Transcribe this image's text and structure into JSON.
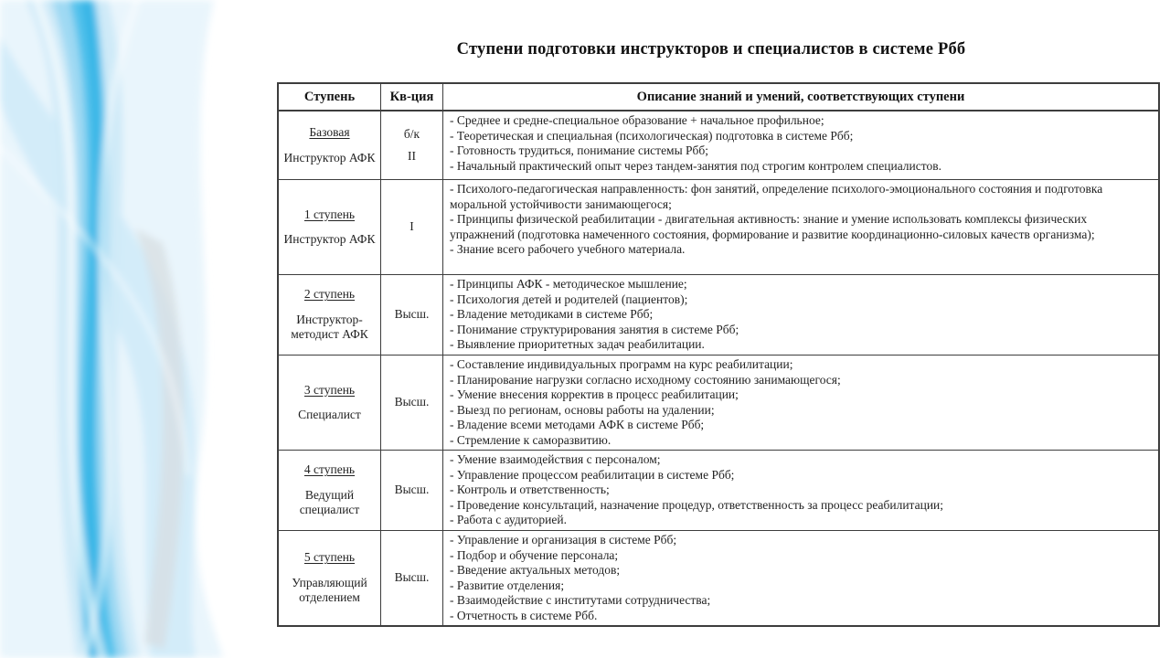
{
  "slide": {
    "title": "Ступени подготовки инструкторов и специалистов в системе Рбб"
  },
  "table": {
    "headers": [
      "Ступень",
      "Кв-ция",
      "Описание знаний и умений, соответствующих ступени"
    ],
    "rows": [
      {
        "stage": "Базовая",
        "role": "Инструктор АФК",
        "qualification": [
          "б/к",
          "II"
        ],
        "items": [
          "- Среднее и средне-специальное образование + начальное профильное;",
          "- Теоретическая и специальная (психологическая) подготовка в системе Рбб;",
          "- Готовность трудиться, понимание системы Рбб;",
          "- Начальный практический опыт через тандем-занятия под строгим контролем специалистов."
        ]
      },
      {
        "stage": "1 ступень",
        "role": "Инструктор АФК",
        "qualification": [
          "I"
        ],
        "items": [
          "- Психолого-педагогическая направленность: фон занятий, определение психолого-эмоционального состояния и подготовка моральной устойчивости занимающегося;",
          "- Принципы физической реабилитации - двигательная активность: знание и умение использовать комплексы физических упражнений (подготовка намеченного состояния, формирование и развитие координационно-силовых качеств организма);",
          "- Знание всего рабочего учебного материала."
        ]
      },
      {
        "stage": "2 ступень",
        "role": "Инструктор-методист АФК",
        "qualification": [
          "Высш."
        ],
        "items": [
          "- Принципы АФК - методическое мышление;",
          "- Психология детей и родителей (пациентов);",
          "- Владение методиками в системе Рбб;",
          "- Понимание структурирования занятия в системе Рбб;",
          "- Выявление приоритетных задач реабилитации."
        ]
      },
      {
        "stage": "3 ступень",
        "role": "Специалист",
        "qualification": [
          "Высш."
        ],
        "items": [
          "- Составление индивидуальных программ на курс реабилитации;",
          "- Планирование нагрузки согласно исходному состоянию занимающегося;",
          "- Умение внесения корректив в процесс реабилитации;",
          "- Выезд по регионам, основы работы на удалении;",
          "- Владение всеми методами АФК в системе Рбб;",
          "- Стремление к саморазвитию."
        ]
      },
      {
        "stage": "4 ступень",
        "role": "Ведущий специалист",
        "qualification": [
          "Высш."
        ],
        "items": [
          "- Умение взаимодействия с персоналом;",
          "- Управление процессом реабилитации в системе Рбб;",
          "- Контроль и ответственность;",
          "- Проведение консультаций, назначение процедур, ответственность за процесс реабилитации;",
          "- Работа с аудиторией."
        ]
      },
      {
        "stage": "5 ступень",
        "role": "Управляющий отделением",
        "qualification": [
          "Высш."
        ],
        "items": [
          "- Управление и организация в системе Рбб;",
          "- Подбор и обучение персонала;",
          "- Введение актуальных методов;",
          "- Развитие отделения;",
          "- Взаимодействие с институтами сотрудничества;",
          "- Отчетность в системе Рбб."
        ]
      }
    ]
  },
  "decor": {
    "wave_pale": "#e9f5fc",
    "wave_light": "#cfeaf8",
    "wave_medium": "#9fd9f3",
    "wave_bright": "#52c2ec",
    "wave_core": "#34b3e5",
    "wave_gray": "#d7dde1"
  }
}
